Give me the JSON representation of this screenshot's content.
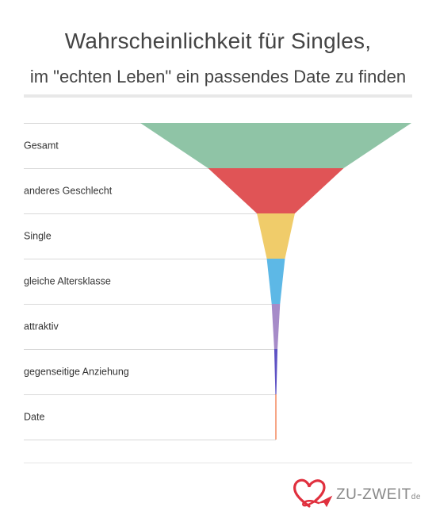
{
  "header": {
    "title": "Wahrscheinlichkeit für Singles,",
    "subtitle": "im \"echten Leben\" ein passendes Date zu finden"
  },
  "chart_data": {
    "type": "funnel",
    "categories": [
      "Gesamt",
      "anderes Geschlecht",
      "Single",
      "gleiche Altersklasse",
      "attraktiv",
      "gegenseitige Anziehung",
      "Date"
    ],
    "values": [
      100,
      50,
      14,
      6.7,
      3.1,
      1.2,
      0.3
    ],
    "colors": [
      "#8fc4a6",
      "#e05456",
      "#f0cc6a",
      "#5db8e6",
      "#a68bc8",
      "#5e52c4",
      "#ef6a35"
    ]
  },
  "logo": {
    "text": "ZU-ZWEIT",
    "suffix": "de",
    "heart_color": "#e0303e"
  }
}
